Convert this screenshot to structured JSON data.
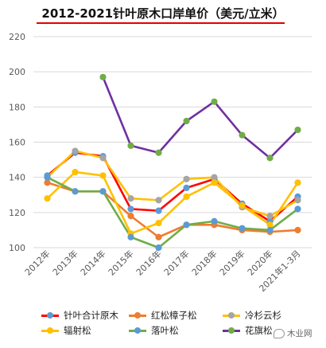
{
  "chart_data": {
    "type": "line",
    "title": "2012-2021针叶原木口岸单价（美元/立米）",
    "categories": [
      "2012年",
      "2013年",
      "2014年",
      "2015年",
      "2016年",
      "2017年",
      "2018年",
      "2019年",
      "2020年",
      "2021年1-3月"
    ],
    "ylim": [
      100,
      220
    ],
    "yticks": [
      100,
      120,
      140,
      160,
      180,
      200,
      220
    ],
    "grid": true,
    "legend_position": "bottom",
    "series": [
      {
        "name": "针叶合计原木",
        "color": "#ff0000",
        "marker": "#5b9bd5",
        "values": [
          141,
          154,
          152,
          122,
          121,
          134,
          139,
          125,
          115,
          129
        ]
      },
      {
        "name": "红松樟子松",
        "color": "#ed7d31",
        "marker": "#ed7d31",
        "values": [
          137,
          132,
          132,
          118,
          106,
          113,
          113,
          110,
          109,
          110
        ]
      },
      {
        "name": "冷杉云杉",
        "color": "#ffc000",
        "marker": "#a5a5a5",
        "values": [
          140,
          155,
          151,
          128,
          127,
          139,
          140,
          123,
          118,
          127
        ]
      },
      {
        "name": "辐射松",
        "color": "#ffc000",
        "marker": "#ffc000",
        "values": [
          128,
          143,
          141,
          108,
          114,
          129,
          137,
          124,
          113,
          137
        ]
      },
      {
        "name": "落叶松",
        "color": "#70ad47",
        "marker": "#5b9bd5",
        "values": [
          140,
          132,
          132,
          106,
          100,
          113,
          115,
          111,
          110,
          122
        ]
      },
      {
        "name": "花旗松",
        "color": "#7030a0",
        "marker": "#70ad47",
        "values": [
          null,
          null,
          197,
          158,
          154,
          172,
          183,
          164,
          151,
          167
        ]
      }
    ]
  },
  "watermark": "木业网"
}
